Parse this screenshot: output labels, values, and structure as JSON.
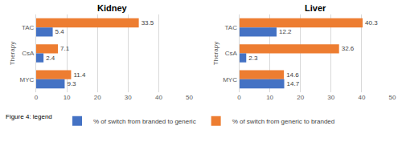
{
  "chart_data": [
    {
      "type": "bar",
      "title": "Kidney",
      "orientation": "horizontal",
      "y_label": "Therapy",
      "categories": [
        "TAC",
        "CsA",
        "MYC"
      ],
      "series": [
        {
          "name": "% of switch from branded to generic",
          "color": "#4472c4",
          "values": [
            5.4,
            2.4,
            9.3
          ]
        },
        {
          "name": "% of switch from generic to branded",
          "color": "#ed7d31",
          "values": [
            33.5,
            7.1,
            11.4
          ]
        }
      ],
      "xlim": [
        0,
        50
      ],
      "xticks": [
        0,
        10,
        20,
        30,
        40,
        50
      ],
      "grid": true,
      "data_labels": true,
      "legend": "bottom",
      "annotations": [
        "Figure 4: legend"
      ]
    },
    {
      "type": "bar",
      "title": "Liver",
      "orientation": "horizontal",
      "y_label": "Therapy",
      "categories": [
        "TAC",
        "CsA",
        "MYC"
      ],
      "series": [
        {
          "name": "% of switch from branded to generic",
          "color": "#4472c4",
          "values": [
            12.2,
            2.3,
            14.7
          ]
        },
        {
          "name": "% of switch from generic to branded",
          "color": "#ed7d31",
          "values": [
            40.3,
            32.6,
            14.6
          ]
        }
      ],
      "xlim": [
        0,
        50
      ],
      "xticks": [
        0,
        10,
        20,
        30,
        40,
        50
      ],
      "grid": true,
      "data_labels": true
    }
  ]
}
